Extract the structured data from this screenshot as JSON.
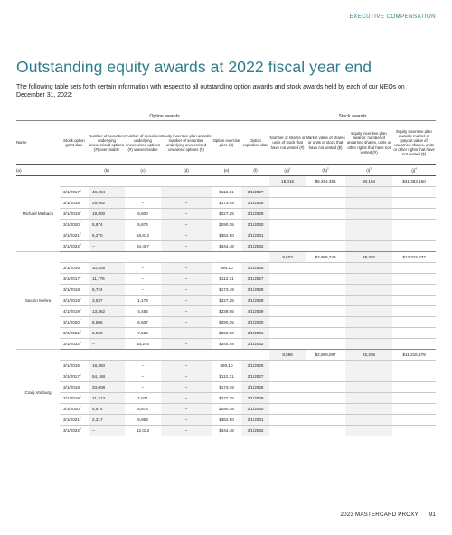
{
  "header": {
    "section": "EXECUTIVE COMPENSATION"
  },
  "title": "Outstanding equity awards at 2022 fiscal year end",
  "intro": "The following table sets forth certain information with respect to all outstanding option awards and stock awards held by each of our NEOs on December 31, 2022:",
  "table": {
    "group_headers": {
      "option": "Option awards",
      "stock": "Stock awards"
    },
    "columns": [
      "Name",
      "Stock option grant date",
      "Number of securities underlying unexercised options (#) exercisable",
      "Number of securities underlying unexercised options (#) unexercisable",
      "Equity incentive plan awards: number of securities underlying unexercised unearned options (#)",
      "Option exercise price ($)",
      "Option expiration date",
      "Number of shares or units of stock that have not vested (#)",
      "Market value of shares or units of stock that have not vested ($)",
      "Equity incentive plan awards: number of unearned shares, units or other rights that have not vested (#)",
      "Equity incentive plan awards: market or payout value of unearned shares, units or other rights that have not vested ($)"
    ],
    "codes": [
      "(a)",
      "(b)",
      "(c)",
      "(d)",
      "(e)",
      "(f)",
      "(g)",
      "(h)",
      "(i)",
      "(j)"
    ],
    "code_sups": [
      "1",
      "2",
      "3",
      "4"
    ],
    "neos": [
      {
        "name": "Michael Miebach",
        "stock": {
          "shares": "18,015",
          "market": "$6,264,356",
          "units": "90,194",
          "payout": "$31,363,160"
        },
        "options": [
          {
            "date": "3/1/2017",
            "sup": "5",
            "exercisable": "40,604",
            "unexercisable": "–",
            "unearned": "–",
            "price": "$112.31",
            "expiration": "3/1/2027"
          },
          {
            "date": "3/1/2018",
            "sup": "",
            "exercisable": "29,952",
            "unexercisable": "–",
            "unearned": "–",
            "price": "$173.49",
            "expiration": "3/1/2028"
          },
          {
            "date": "3/1/2019",
            "sup": "6",
            "exercisable": "19,800",
            "unexercisable": "6,600",
            "unearned": "–",
            "price": "$227.25",
            "expiration": "3/1/2029"
          },
          {
            "date": "3/1/2020",
            "sup": "7",
            "exercisable": "5,874",
            "unexercisable": "5,874",
            "unearned": "–",
            "price": "$290.15",
            "expiration": "3/1/2030"
          },
          {
            "date": "3/1/2021",
            "sup": "8",
            "exercisable": "6,270",
            "unexercisable": "18,812",
            "unearned": "–",
            "price": "$362.90",
            "expiration": "3/1/2031"
          },
          {
            "date": "3/1/2022",
            "sup": "9",
            "exercisable": "–",
            "unexercisable": "34,457",
            "unearned": "–",
            "price": "$344.48",
            "expiration": "3/1/2032"
          }
        ]
      },
      {
        "name": "Sachin Mehra",
        "stock": {
          "shares": "8,503",
          "market": "$2,956,748",
          "units": "38,292",
          "payout": "$13,315,277"
        },
        "options": [
          {
            "date": "3/1/2016",
            "sup": "",
            "exercisable": "10,838",
            "unexercisable": "–",
            "unearned": "–",
            "price": "$90.10",
            "expiration": "3/1/2026"
          },
          {
            "date": "3/1/2017",
            "sup": "5",
            "exercisable": "11,776",
            "unexercisable": "–",
            "unearned": "–",
            "price": "$112.31",
            "expiration": "3/1/2027"
          },
          {
            "date": "3/1/2018",
            "sup": "",
            "exercisable": "6,724",
            "unexercisable": "–",
            "unearned": "–",
            "price": "$173.49",
            "expiration": "3/1/2028"
          },
          {
            "date": "3/1/2019",
            "sup": "6",
            "exercisable": "3,537",
            "unexercisable": "1,179",
            "unearned": "–",
            "price": "$227.25",
            "expiration": "3/1/2029"
          },
          {
            "date": "4/1/2019",
            "sup": "6",
            "exercisable": "13,362",
            "unexercisable": "4,454",
            "unearned": "–",
            "price": "$239.65",
            "expiration": "4/1/2029"
          },
          {
            "date": "3/1/2020",
            "sup": "7",
            "exercisable": "6,506",
            "unexercisable": "6,507",
            "unearned": "–",
            "price": "$290.15",
            "expiration": "3/1/2030"
          },
          {
            "date": "3/1/2021",
            "sup": "8",
            "exercisable": "2,508",
            "unexercisable": "7,525",
            "unearned": "–",
            "price": "$362.90",
            "expiration": "3/1/2031"
          },
          {
            "date": "3/1/2022",
            "sup": "9",
            "exercisable": "–",
            "unexercisable": "15,244",
            "unearned": "–",
            "price": "$344.48",
            "expiration": "3/1/2032"
          }
        ]
      },
      {
        "name": "Craig Vosburg",
        "stock": {
          "shares": "8,596",
          "market": "$2,989,087",
          "units": "32,256",
          "payout": "$11,216,379"
        },
        "options": [
          {
            "date": "3/1/2016",
            "sup": "",
            "exercisable": "18,350",
            "unexercisable": "–",
            "unearned": "–",
            "price": "$90.10",
            "expiration": "3/1/2026"
          },
          {
            "date": "3/1/2017",
            "sup": "5",
            "exercisable": "54,168",
            "unexercisable": "–",
            "unearned": "–",
            "price": "$112.31",
            "expiration": "3/1/2027"
          },
          {
            "date": "3/1/2018",
            "sup": "",
            "exercisable": "33,008",
            "unexercisable": "–",
            "unearned": "–",
            "price": "$173.49",
            "expiration": "3/1/2028"
          },
          {
            "date": "3/1/2019",
            "sup": "6",
            "exercisable": "21,213",
            "unexercisable": "7,071",
            "unearned": "–",
            "price": "$227.25",
            "expiration": "3/1/2029"
          },
          {
            "date": "3/1/2020",
            "sup": "7",
            "exercisable": "5,874",
            "unexercisable": "5,874",
            "unearned": "–",
            "price": "$290.15",
            "expiration": "3/1/2030"
          },
          {
            "date": "3/1/2021",
            "sup": "8",
            "exercisable": "2,317",
            "unexercisable": "6,953",
            "unearned": "–",
            "price": "$362.90",
            "expiration": "3/1/2031"
          },
          {
            "date": "3/1/2022",
            "sup": "9",
            "exercisable": "–",
            "unexercisable": "12,023",
            "unearned": "–",
            "price": "$344.48",
            "expiration": "3/1/2032"
          }
        ]
      }
    ]
  },
  "footer": {
    "report": "2023 MASTERCARD PROXY",
    "page": "91"
  }
}
